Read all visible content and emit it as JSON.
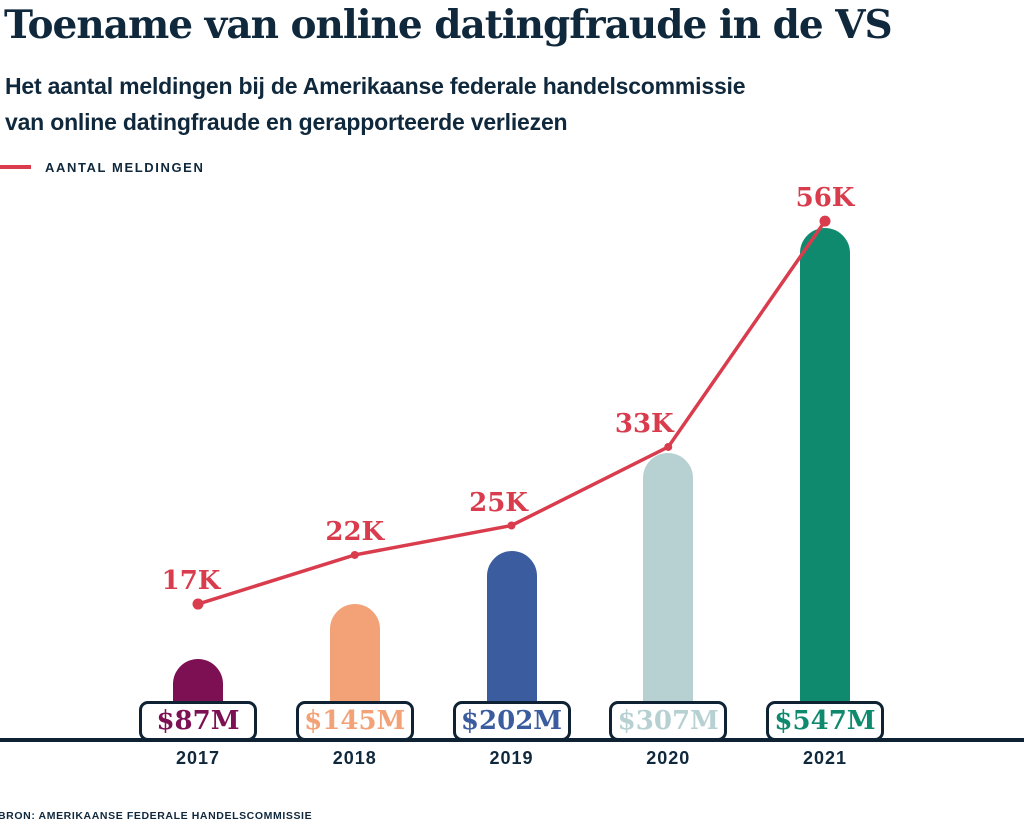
{
  "title": "Toename van online datingfraude in de VS",
  "subtitle_line1": "Het aantal meldingen bij de Amerikaanse federale handelscommissie",
  "subtitle_line2": "van online datingfraude en gerapporteerde verliezen",
  "legend": {
    "label": "AANTAL MELDINGEN"
  },
  "source": "BRON: AMERIKAANSE FEDERALE HANDELSCOMMISSIE",
  "colors": {
    "navy": "#10283c",
    "red": "#d93c4d",
    "bar_2017": "#7d1053",
    "bar_2018": "#f2a276",
    "bar_2019": "#3b5d9f",
    "bar_2020": "#b7d1d2",
    "bar_2021": "#108a6f"
  },
  "chart_data": {
    "type": "bar",
    "subtype": "combo-bar-and-line",
    "categories": [
      "2017",
      "2018",
      "2019",
      "2020",
      "2021"
    ],
    "series": [
      {
        "name": "Gerapporteerde verliezen",
        "type": "bar",
        "unit": "USD miljoen",
        "values": [
          87,
          145,
          202,
          307,
          547
        ],
        "labels": [
          "$87M",
          "$145M",
          "$202M",
          "$307M",
          "$547M"
        ],
        "colors": [
          "#7d1053",
          "#f2a276",
          "#3b5d9f",
          "#b7d1d2",
          "#108a6f"
        ]
      },
      {
        "name": "Aantal meldingen",
        "type": "line",
        "unit": "meldingen",
        "values": [
          17000,
          22000,
          25000,
          33000,
          56000
        ],
        "labels": [
          "17K",
          "22K",
          "25K",
          "33K",
          "56K"
        ],
        "color": "#d93c4d"
      }
    ],
    "legend_position": "top-left",
    "grid": false,
    "y_axis": "hidden",
    "x_axis": "years shown below baseline"
  }
}
